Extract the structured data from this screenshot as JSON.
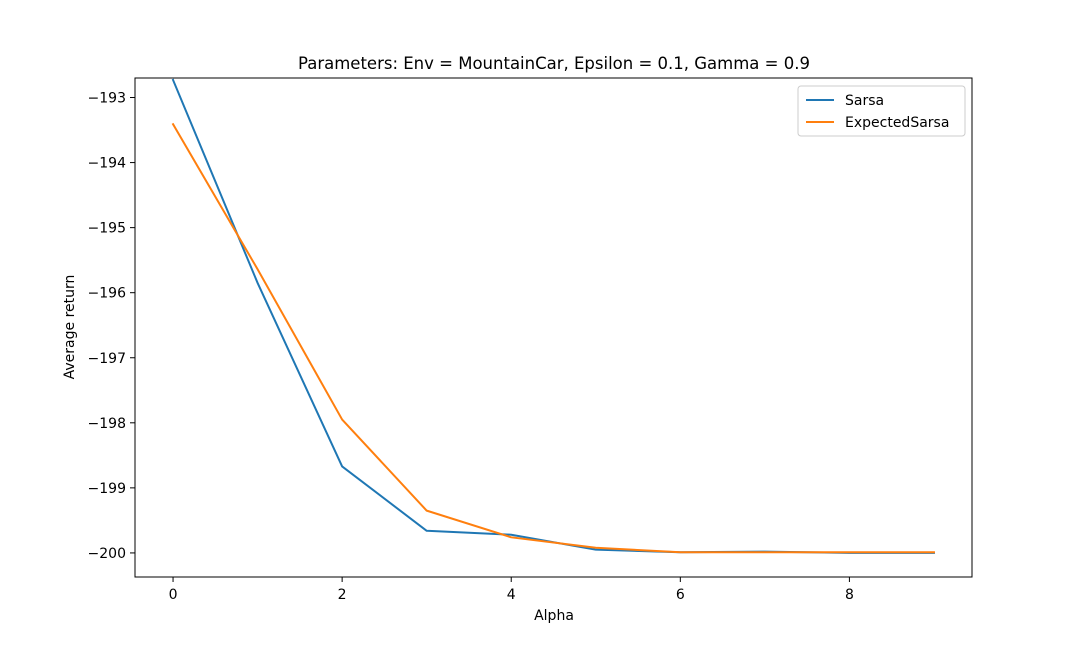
{
  "chart_data": {
    "type": "line",
    "title": "Parameters: Env = MountainCar, Epsilon = 0.1, Gamma = 0.9",
    "xlabel": "Alpha",
    "ylabel": "Average return",
    "xlim": [
      -0.45,
      9.45
    ],
    "ylim": [
      -200.37,
      -192.7
    ],
    "xticks": [
      0,
      2,
      4,
      6,
      8
    ],
    "yticks": [
      -193,
      -194,
      -195,
      -196,
      -197,
      -198,
      -199,
      -200
    ],
    "x": [
      0,
      1,
      2,
      3,
      4,
      5,
      6,
      7,
      8,
      9
    ],
    "grid": false,
    "legend_position": "upper right",
    "series": [
      {
        "name": "Sarsa",
        "color": "#1f77b4",
        "values": [
          -192.73,
          -195.85,
          -198.67,
          -199.66,
          -199.72,
          -199.95,
          -199.99,
          -199.98,
          -200.0,
          -200.0
        ]
      },
      {
        "name": "ExpectedSarsa",
        "color": "#ff7f0e",
        "values": [
          -193.41,
          -195.64,
          -197.95,
          -199.35,
          -199.76,
          -199.92,
          -199.99,
          -199.99,
          -199.99,
          -199.99
        ]
      }
    ]
  }
}
